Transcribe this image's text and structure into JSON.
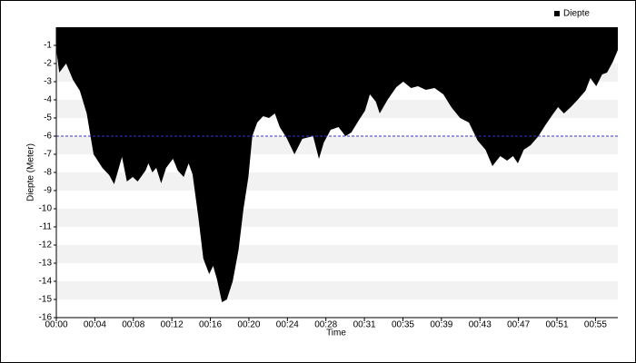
{
  "chart_data": {
    "type": "area",
    "y_label": "Diepte (Meter)",
    "x_label": "Time",
    "series": [
      {
        "name": "Diepte",
        "color": "#000000",
        "x": [
          0,
          0.3,
          1.0,
          1.7,
          2.4,
          3.1,
          3.8,
          4.7,
          5.4,
          5.9,
          6.7,
          7.2,
          7.8,
          8.3,
          9.1,
          9.4,
          9.8,
          10.2,
          10.7,
          11.2,
          11.9,
          12.4,
          13.0,
          13.5,
          13.9,
          14.5,
          15.0,
          15.6,
          16.0,
          16.4,
          16.9,
          17.4,
          18.0,
          18.6,
          19.1,
          19.6,
          20.0,
          20.5,
          21.1,
          21.7,
          22.3,
          22.8,
          23.5,
          24.3,
          25.1,
          26.2,
          26.8,
          27.3,
          28.0,
          28.8,
          29.5,
          30.1,
          30.9,
          31.5,
          32.0,
          32.6,
          33.0,
          33.8,
          34.7,
          35.4,
          36.2,
          36.9,
          37.7,
          38.6,
          39.5,
          40.3,
          41.2,
          42.1,
          43.0,
          43.8,
          44.5,
          45.3,
          46.0,
          46.6,
          47.1,
          47.7,
          48.4,
          49.2,
          49.9,
          50.6,
          51.2,
          51.8,
          52.5,
          53.2,
          54.0,
          54.5,
          55.1,
          55.7,
          56.2,
          56.8,
          57.3
        ],
        "values": [
          -1.25,
          -2.5,
          -2.0,
          -2.9,
          -3.5,
          -4.75,
          -7.0,
          -7.75,
          -8.15,
          -8.65,
          -7.15,
          -8.5,
          -8.25,
          -8.5,
          -7.9,
          -7.5,
          -8.0,
          -7.75,
          -8.6,
          -7.75,
          -7.25,
          -7.9,
          -8.25,
          -7.5,
          -8.1,
          -10.5,
          -12.75,
          -13.6,
          -13.15,
          -13.9,
          -15.15,
          -15.0,
          -14.0,
          -12.25,
          -10.0,
          -8.25,
          -6.0,
          -5.25,
          -4.9,
          -5.0,
          -4.75,
          -5.5,
          -6.1,
          -7.0,
          -6.15,
          -6.0,
          -7.25,
          -6.35,
          -5.65,
          -5.5,
          -6.0,
          -5.8,
          -5.1,
          -4.6,
          -3.7,
          -4.1,
          -4.75,
          -4.0,
          -3.3,
          -3.0,
          -3.35,
          -3.25,
          -3.45,
          -3.35,
          -3.7,
          -4.4,
          -5.0,
          -5.25,
          -6.25,
          -6.75,
          -7.65,
          -7.1,
          -7.35,
          -7.1,
          -7.5,
          -6.75,
          -6.5,
          -6.0,
          -5.4,
          -4.85,
          -4.4,
          -4.75,
          -4.4,
          -4.0,
          -3.5,
          -2.8,
          -3.25,
          -2.6,
          -2.5,
          -1.9,
          -1.25
        ]
      }
    ],
    "xlim": [
      0,
      57.3
    ],
    "xticks": [
      {
        "value": 0,
        "label": "00:00"
      },
      {
        "value": 3.93,
        "label": "00:04"
      },
      {
        "value": 7.86,
        "label": "00:08"
      },
      {
        "value": 11.79,
        "label": "00:12"
      },
      {
        "value": 15.72,
        "label": "00:16"
      },
      {
        "value": 19.65,
        "label": "00:20"
      },
      {
        "value": 23.58,
        "label": "00:24"
      },
      {
        "value": 27.51,
        "label": "00:28"
      },
      {
        "value": 31.44,
        "label": "00:31"
      },
      {
        "value": 35.37,
        "label": "00:35"
      },
      {
        "value": 39.3,
        "label": "00:39"
      },
      {
        "value": 43.23,
        "label": "00:43"
      },
      {
        "value": 47.16,
        "label": "00:47"
      },
      {
        "value": 51.09,
        "label": "00:51"
      },
      {
        "value": 55.02,
        "label": "00:55"
      }
    ],
    "ylim": [
      0,
      -16
    ],
    "yticks": [
      -1,
      -2,
      -3,
      -4,
      -5,
      -6,
      -7,
      -8,
      -9,
      -10,
      -11,
      -12,
      -13,
      -14,
      -15,
      -16
    ],
    "alternating_bands": true,
    "band_color": "#f2f2f2",
    "reference_line": {
      "value": -6,
      "color": "#3333cc"
    },
    "legend": "top-right"
  }
}
